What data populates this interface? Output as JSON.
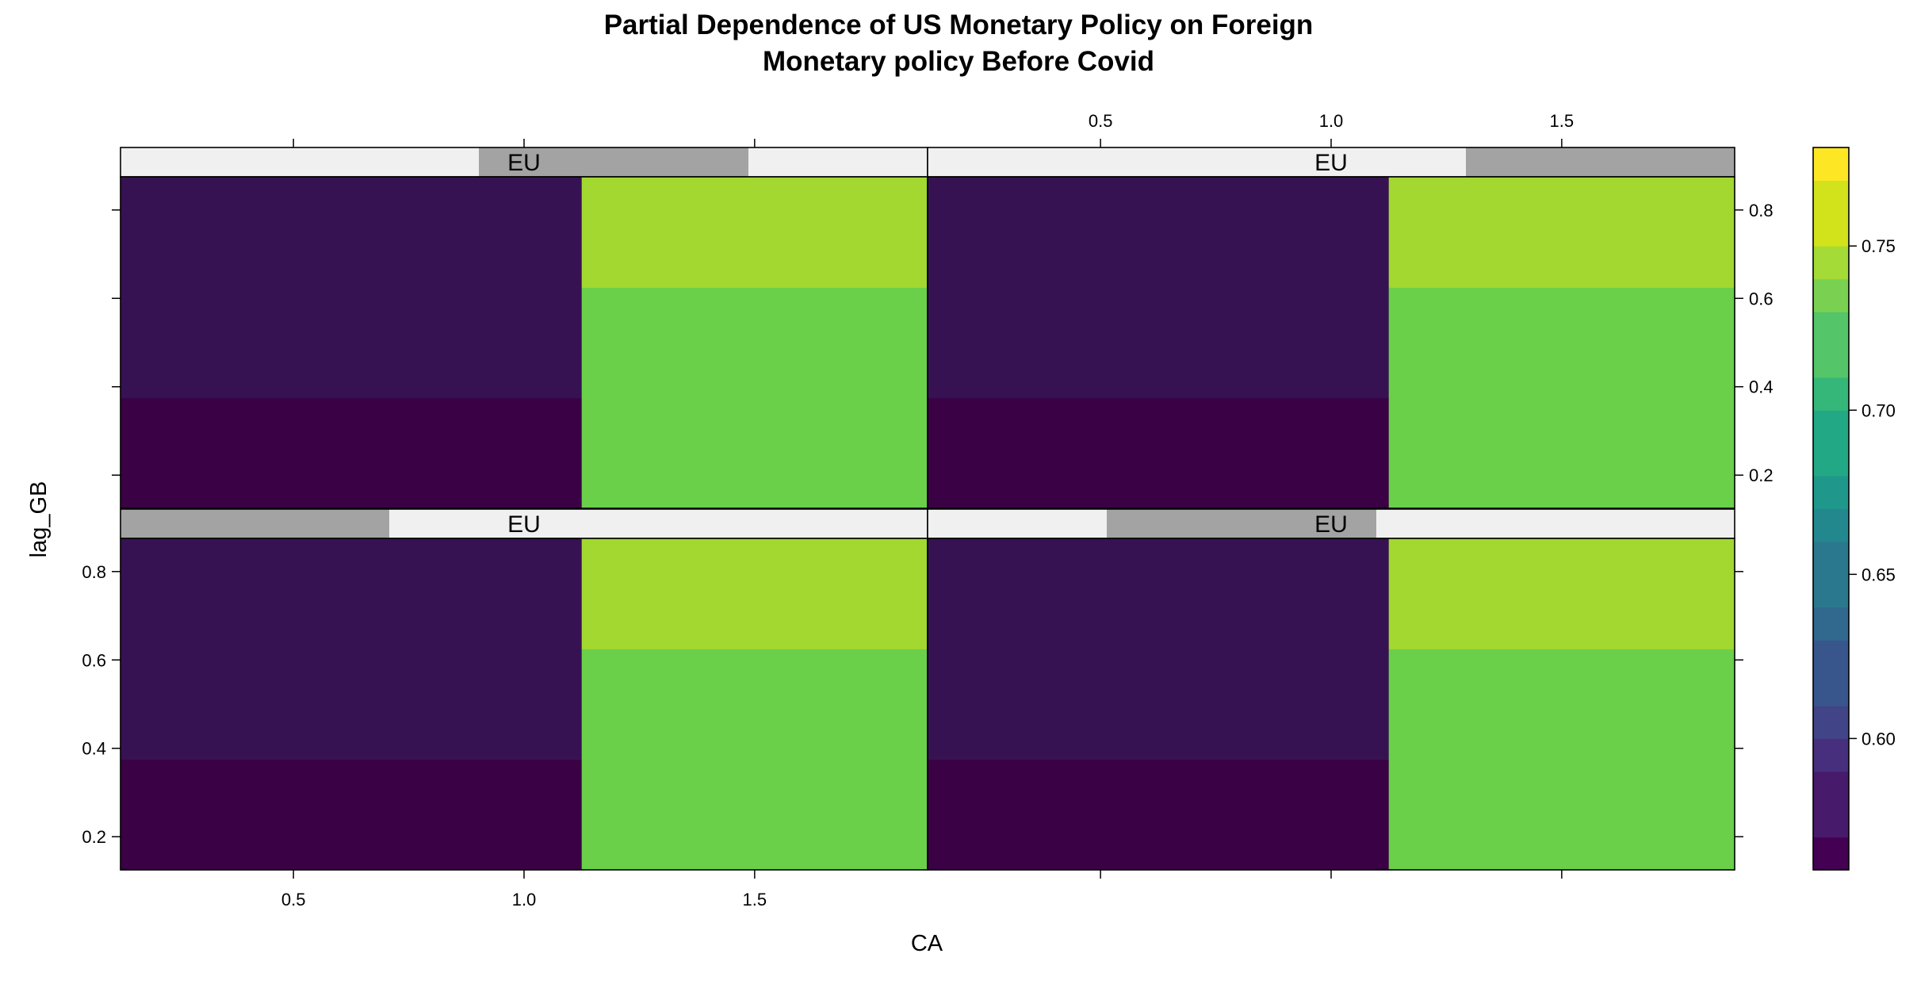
{
  "chart_data": {
    "type": "heatmap",
    "title_lines": [
      "Partial Dependence of US Monetary Policy on Foreign",
      "Monetary policy Before Covid"
    ],
    "xlabel": "CA",
    "ylabel": "lag_GB",
    "xlim": [
      0.125,
      1.875
    ],
    "ylim": [
      0.125,
      0.875
    ],
    "x_ticks": [
      0.5,
      1.0,
      1.5
    ],
    "x_tick_labels": [
      "0.5",
      "1.0",
      "1.5"
    ],
    "y_ticks": [
      0.2,
      0.4,
      0.6,
      0.8
    ],
    "y_tick_labels": [
      "0.2",
      "0.4",
      "0.6",
      "0.8"
    ],
    "x_breaks": [
      0.125,
      1.125,
      1.875
    ],
    "y_breaks": [
      0.125,
      0.375,
      0.625,
      0.875
    ],
    "grid": false,
    "panels": [
      {
        "position": "bottom-left",
        "strip_label": "EU",
        "eu_range": [
          0.0,
          0.333
        ],
        "values": [
          [
            0.565,
            0.742
          ],
          [
            0.578,
            0.742
          ],
          [
            0.578,
            0.752
          ]
        ]
      },
      {
        "position": "bottom-right",
        "strip_label": "EU",
        "eu_range": [
          0.222,
          0.556
        ],
        "values": [
          [
            0.565,
            0.742
          ],
          [
            0.578,
            0.742
          ],
          [
            0.578,
            0.752
          ]
        ]
      },
      {
        "position": "top-left",
        "strip_label": "EU",
        "eu_range": [
          0.444,
          0.778
        ],
        "values": [
          [
            0.565,
            0.742
          ],
          [
            0.578,
            0.742
          ],
          [
            0.578,
            0.752
          ]
        ]
      },
      {
        "position": "top-right",
        "strip_label": "EU",
        "eu_range": [
          0.667,
          1.0
        ],
        "values": [
          [
            0.565,
            0.742
          ],
          [
            0.578,
            0.742
          ],
          [
            0.578,
            0.752
          ]
        ]
      }
    ],
    "colorkey": {
      "ticks": [
        0.6,
        0.65,
        0.7,
        0.75
      ],
      "tick_labels": [
        "0.60",
        "0.65",
        "0.70",
        "0.75"
      ],
      "breaks": [
        0.56,
        0.57,
        0.58,
        0.59,
        0.6,
        0.61,
        0.62,
        0.63,
        0.64,
        0.65,
        0.66,
        0.67,
        0.68,
        0.69,
        0.7,
        0.71,
        0.72,
        0.73,
        0.74,
        0.75,
        0.76,
        0.77,
        0.78
      ],
      "colors": [
        "#440154",
        "#481A6C",
        "#472F7D",
        "#414487",
        "#39568C",
        "#31688E",
        "#2A788E",
        "#23888E",
        "#1F988B",
        "#22A884",
        "#35B779",
        "#54C568",
        "#7AD151",
        "#A5DB36",
        "#D2E21B",
        "#FDE725"
      ]
    },
    "colors": {
      "strip_bg": "#F0F0F0",
      "strip_shade": "#A3A3A3",
      "cell_colors_by_value": {
        "0.565": "#3A0244",
        "0.578": "#371252",
        "0.742": "#6AD04A",
        "0.752": "#A2D830"
      }
    }
  }
}
